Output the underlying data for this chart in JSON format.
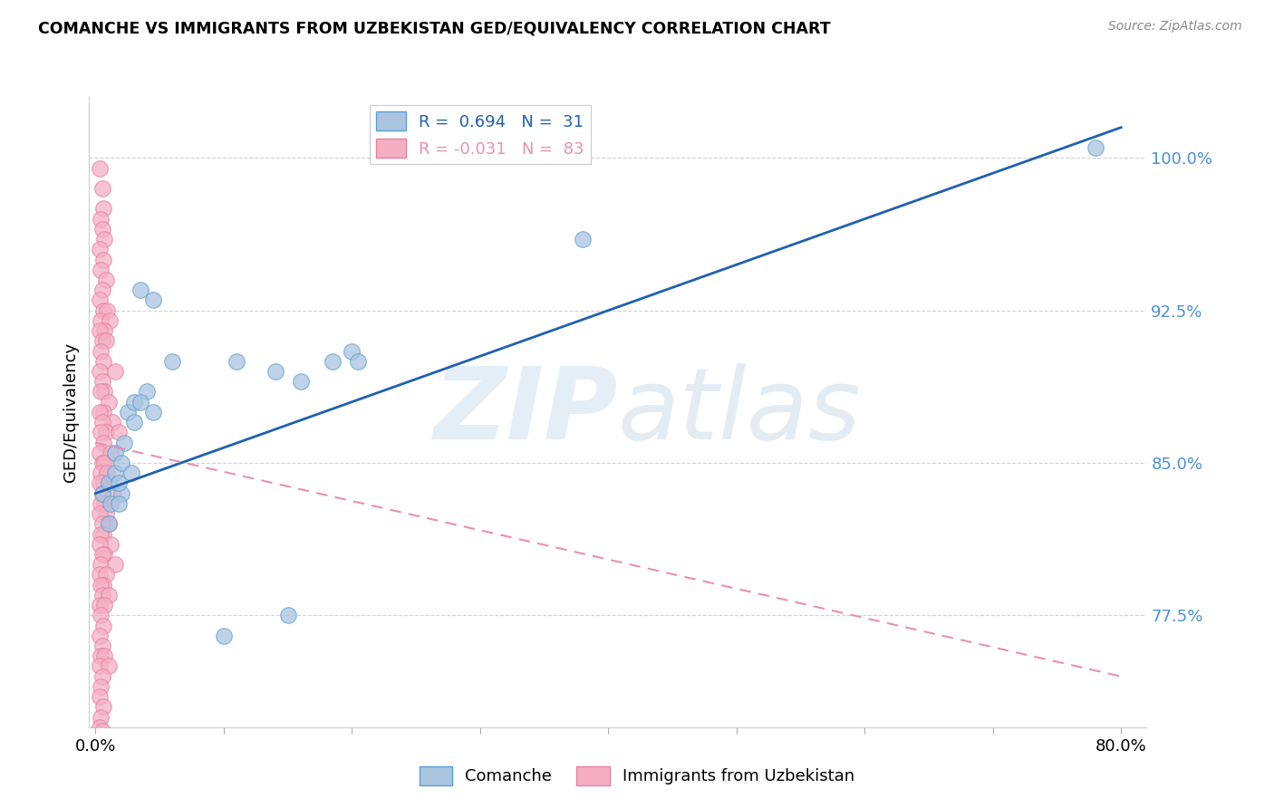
{
  "title": "COMANCHE VS IMMIGRANTS FROM UZBEKISTAN GED/EQUIVALENCY CORRELATION CHART",
  "source": "Source: ZipAtlas.com",
  "ylabel": "GED/Equivalency",
  "blue_color": "#aac4e0",
  "pink_color": "#f4afc3",
  "blue_edge_color": "#5a9fd4",
  "pink_edge_color": "#e87fa0",
  "blue_line_color": "#2060b0",
  "pink_line_color": "#e890b0",
  "ytick_color": "#4a90d9",
  "yticks": [
    77.5,
    85.0,
    92.5,
    100.0
  ],
  "xlim": [
    -0.5,
    82.0
  ],
  "ylim": [
    72.0,
    103.0
  ],
  "legend_blue_label": "R =  0.694   N =  31",
  "legend_pink_label": "R = -0.031   N =  83",
  "blue_line_x": [
    0,
    80
  ],
  "blue_line_y": [
    83.5,
    101.5
  ],
  "pink_line_x": [
    0,
    80
  ],
  "pink_line_y": [
    86.0,
    74.5
  ],
  "blue_scatter": [
    [
      0.5,
      83.5
    ],
    [
      1.0,
      84.0
    ],
    [
      1.5,
      84.5
    ],
    [
      2.0,
      83.5
    ],
    [
      1.2,
      83.0
    ],
    [
      1.8,
      84.0
    ],
    [
      2.5,
      87.5
    ],
    [
      2.2,
      86.0
    ],
    [
      3.0,
      88.0
    ],
    [
      4.0,
      88.5
    ],
    [
      1.0,
      82.0
    ],
    [
      1.5,
      85.5
    ],
    [
      2.0,
      85.0
    ],
    [
      3.5,
      88.0
    ],
    [
      4.5,
      87.5
    ],
    [
      2.8,
      84.5
    ],
    [
      1.8,
      83.0
    ],
    [
      3.5,
      93.5
    ],
    [
      4.5,
      93.0
    ],
    [
      6.0,
      90.0
    ],
    [
      11.0,
      90.0
    ],
    [
      3.0,
      87.0
    ],
    [
      14.0,
      89.5
    ],
    [
      16.0,
      89.0
    ],
    [
      18.5,
      90.0
    ],
    [
      20.0,
      90.5
    ],
    [
      20.5,
      90.0
    ],
    [
      10.0,
      76.5
    ],
    [
      15.0,
      77.5
    ],
    [
      38.0,
      96.0
    ],
    [
      78.0,
      100.5
    ]
  ],
  "pink_scatter": [
    [
      0.3,
      99.5
    ],
    [
      0.5,
      98.5
    ],
    [
      0.6,
      97.5
    ],
    [
      0.4,
      97.0
    ],
    [
      0.5,
      96.5
    ],
    [
      0.7,
      96.0
    ],
    [
      0.3,
      95.5
    ],
    [
      0.6,
      95.0
    ],
    [
      0.4,
      94.5
    ],
    [
      0.8,
      94.0
    ],
    [
      0.5,
      93.5
    ],
    [
      0.3,
      93.0
    ],
    [
      0.6,
      92.5
    ],
    [
      0.9,
      92.5
    ],
    [
      0.4,
      92.0
    ],
    [
      1.1,
      92.0
    ],
    [
      0.7,
      91.5
    ],
    [
      0.3,
      91.5
    ],
    [
      0.5,
      91.0
    ],
    [
      0.8,
      91.0
    ],
    [
      0.4,
      90.5
    ],
    [
      0.6,
      90.0
    ],
    [
      0.3,
      89.5
    ],
    [
      1.5,
      89.5
    ],
    [
      0.5,
      89.0
    ],
    [
      0.7,
      88.5
    ],
    [
      0.4,
      88.5
    ],
    [
      1.0,
      88.0
    ],
    [
      0.6,
      87.5
    ],
    [
      0.3,
      87.5
    ],
    [
      1.3,
      87.0
    ],
    [
      0.5,
      87.0
    ],
    [
      0.8,
      86.5
    ],
    [
      0.4,
      86.5
    ],
    [
      1.8,
      86.5
    ],
    [
      0.6,
      86.0
    ],
    [
      0.3,
      85.5
    ],
    [
      1.2,
      85.5
    ],
    [
      0.5,
      85.0
    ],
    [
      0.7,
      85.0
    ],
    [
      0.4,
      84.5
    ],
    [
      0.9,
      84.5
    ],
    [
      0.6,
      84.0
    ],
    [
      0.3,
      84.0
    ],
    [
      0.5,
      83.5
    ],
    [
      1.4,
      83.5
    ],
    [
      0.7,
      83.0
    ],
    [
      0.4,
      83.0
    ],
    [
      0.8,
      82.5
    ],
    [
      0.3,
      82.5
    ],
    [
      1.0,
      82.0
    ],
    [
      0.5,
      82.0
    ],
    [
      0.6,
      81.5
    ],
    [
      0.4,
      81.5
    ],
    [
      1.2,
      81.0
    ],
    [
      0.3,
      81.0
    ],
    [
      0.7,
      80.5
    ],
    [
      0.5,
      80.5
    ],
    [
      0.4,
      80.0
    ],
    [
      1.5,
      80.0
    ],
    [
      0.3,
      79.5
    ],
    [
      0.8,
      79.5
    ],
    [
      0.6,
      79.0
    ],
    [
      0.4,
      79.0
    ],
    [
      0.5,
      78.5
    ],
    [
      1.0,
      78.5
    ],
    [
      0.3,
      78.0
    ],
    [
      0.7,
      78.0
    ],
    [
      0.4,
      77.5
    ],
    [
      0.6,
      77.0
    ],
    [
      0.3,
      76.5
    ],
    [
      0.5,
      76.0
    ],
    [
      0.4,
      75.5
    ],
    [
      0.7,
      75.5
    ],
    [
      0.3,
      75.0
    ],
    [
      1.0,
      75.0
    ],
    [
      0.5,
      74.5
    ],
    [
      0.4,
      74.0
    ],
    [
      0.3,
      73.5
    ],
    [
      0.6,
      73.0
    ],
    [
      0.4,
      72.5
    ],
    [
      0.3,
      72.0
    ],
    [
      0.5,
      71.8
    ]
  ]
}
